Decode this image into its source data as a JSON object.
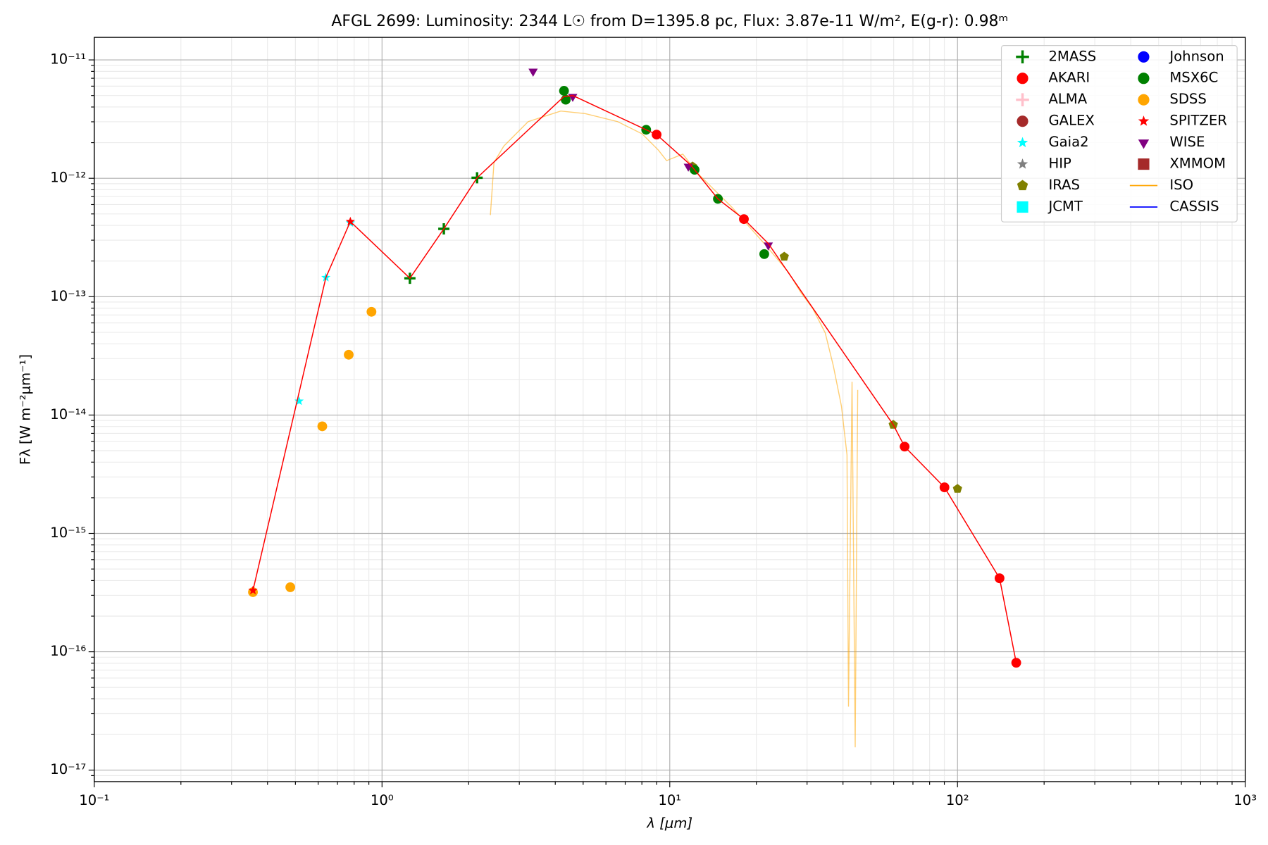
{
  "chart_data": {
    "type": "sed",
    "title": "AFGL 2699:  Luminosity: 2344 L☉ from D=1395.8 pc, Flux: 3.87e-11 W/m², E(g-r): 0.98ᵐ",
    "xlabel": "λ [μm]",
    "ylabel": "Fλ [W m⁻²μm⁻¹]",
    "xscale": "log",
    "yscale": "log",
    "xlim": [
      0.1,
      1000
    ],
    "ylim": [
      8e-18,
      1.55e-11
    ],
    "xticks": [
      {
        "value": 0.1,
        "label": "10⁻¹"
      },
      {
        "value": 1,
        "label": "10⁰"
      },
      {
        "value": 10,
        "label": "10¹"
      },
      {
        "value": 100,
        "label": "10²"
      },
      {
        "value": 1000,
        "label": "10³"
      }
    ],
    "yticks": [
      {
        "value": 1e-17,
        "label": "10⁻¹⁷"
      },
      {
        "value": 1e-16,
        "label": "10⁻¹⁶"
      },
      {
        "value": 1e-15,
        "label": "10⁻¹⁵"
      },
      {
        "value": 1e-14,
        "label": "10⁻¹⁴"
      },
      {
        "value": 1e-13,
        "label": "10⁻¹³"
      },
      {
        "value": 1e-12,
        "label": "10⁻¹²"
      },
      {
        "value": 1e-11,
        "label": "10⁻¹¹"
      }
    ],
    "xminorticks": [
      0.2,
      0.3,
      0.4,
      0.5,
      0.6,
      0.7,
      0.8,
      0.9,
      2,
      3,
      4,
      5,
      6,
      7,
      8,
      9,
      20,
      30,
      40,
      50,
      60,
      70,
      80,
      90,
      200,
      300,
      400,
      500,
      600,
      700,
      800,
      900
    ],
    "yminorticks": [
      9e-18,
      2e-17,
      3e-17,
      4e-17,
      5e-17,
      6e-17,
      7e-17,
      8e-17,
      9e-17,
      2e-16,
      3e-16,
      4e-16,
      5e-16,
      6e-16,
      7e-16,
      8e-16,
      9e-16,
      2e-15,
      3e-15,
      4e-15,
      5e-15,
      6e-15,
      7e-15,
      8e-15,
      9e-15,
      2e-14,
      3e-14,
      4e-14,
      5e-14,
      6e-14,
      7e-14,
      8e-14,
      9e-14,
      2e-13,
      3e-13,
      4e-13,
      5e-13,
      6e-13,
      7e-13,
      8e-13,
      9e-13,
      2e-12,
      3e-12,
      4e-12,
      5e-12,
      6e-12,
      7e-12,
      8e-12,
      9e-12
    ],
    "grid": true,
    "legend": "upper right",
    "sed_line": {
      "color": "#ff0000",
      "x": [
        0.356,
        0.638,
        0.776,
        1.25,
        1.64,
        2.14,
        4.29,
        4.61,
        8.28,
        9.0,
        11.8,
        12.2,
        14.7,
        18.1,
        22.0,
        59.8,
        65.5,
        90.1,
        140,
        160
      ],
      "values": [
        3.3e-16,
        1.45e-13,
        4.31e-13,
        1.43e-13,
        3.74e-13,
        1.01e-12,
        4.91e-12,
        4.99e-12,
        2.57e-12,
        2.34e-12,
        1.3e-12,
        1.18e-12,
        6.7e-13,
        4.52e-13,
        2.81e-13,
        8.28e-15,
        5.41e-15,
        2.45e-15,
        4.18e-16,
        8.08e-17
      ]
    },
    "series": [
      {
        "name": "2MASS",
        "color": "#008000",
        "marker": "plus",
        "x": [
          1.25,
          1.64,
          2.14
        ],
        "values": [
          1.43e-13,
          3.74e-13,
          1.01e-12
        ]
      },
      {
        "name": "AKARI",
        "color": "#ff0000",
        "marker": "circle",
        "x": [
          9.0,
          18.1,
          65.5,
          90.1,
          140,
          160
        ],
        "values": [
          2.34e-12,
          4.52e-13,
          5.41e-15,
          2.45e-15,
          4.18e-16,
          8.08e-17
        ]
      },
      {
        "name": "ALMA",
        "color": "#ffc0cb",
        "marker": "plus",
        "x": [],
        "values": []
      },
      {
        "name": "GALEX",
        "color": "#a52a2a",
        "marker": "circle",
        "x": [],
        "values": []
      },
      {
        "name": "Gaia2",
        "color": "#00ffff",
        "marker": "star",
        "x": [
          0.515,
          0.638,
          0.776
        ],
        "values": [
          1.31e-14,
          1.45e-13,
          4.2e-13
        ]
      },
      {
        "name": "HIP",
        "color": "#808080",
        "marker": "star",
        "x": [],
        "values": []
      },
      {
        "name": "IRAS",
        "color": "#808000",
        "marker": "pentagon",
        "x": [
          12,
          25,
          59.8,
          100
        ],
        "values": [
          1.26e-12,
          2.18e-13,
          8.28e-15,
          2.38e-15
        ]
      },
      {
        "name": "JCMT",
        "color": "#00ffff",
        "marker": "square",
        "x": [],
        "values": []
      },
      {
        "name": "Johnson",
        "color": "#0000ff",
        "marker": "circle",
        "x": [],
        "values": []
      },
      {
        "name": "MSX6C",
        "color": "#008000",
        "marker": "circle",
        "x": [
          4.29,
          4.35,
          8.28,
          12.2,
          14.7,
          21.3
        ],
        "values": [
          5.48e-12,
          4.61e-12,
          2.57e-12,
          1.18e-12,
          6.7e-13,
          2.29e-13
        ]
      },
      {
        "name": "SDSS",
        "color": "#ffa500",
        "marker": "circle",
        "x": [
          0.356,
          0.48,
          0.62,
          0.766,
          0.919
        ],
        "values": [
          3.19e-16,
          3.51e-16,
          8.03e-15,
          3.23e-14,
          7.45e-14
        ]
      },
      {
        "name": "SPITZER",
        "color": "#ff0000",
        "marker": "star",
        "x": [
          0.356,
          0.776
        ],
        "values": [
          3.3e-16,
          4.31e-13
        ]
      },
      {
        "name": "WISE",
        "color": "#800080",
        "marker": "triangle",
        "x": [
          3.35,
          4.6,
          11.6,
          22.0
        ],
        "values": [
          8e-12,
          4.9e-12,
          1.26e-12,
          2.72e-13
        ]
      },
      {
        "name": "XMMOM",
        "color": "#a52a2a",
        "marker": "square",
        "x": [],
        "values": []
      },
      {
        "name": "ISO",
        "color": "#ffa500",
        "marker": "line",
        "x": [
          2.38,
          2.45,
          2.65,
          3.22,
          4.18,
          5.08,
          6.59,
          8.02,
          9.13,
          9.75,
          11.1,
          12.6,
          16.4,
          21.3,
          25.8,
          28.5,
          31.4,
          34.7,
          37.0,
          39.5,
          41.3,
          41.8,
          43.0,
          44.1,
          45.0
        ],
        "values": [
          4.89e-13,
          1.36e-12,
          1.87e-12,
          3.01e-12,
          3.7e-12,
          3.52e-12,
          3.01e-12,
          2.37e-12,
          1.73e-12,
          1.41e-12,
          1.6e-12,
          1.08e-12,
          5.73e-13,
          2.81e-13,
          1.62e-13,
          1.09e-13,
          7.94e-14,
          4.94e-14,
          2.62e-14,
          1.19e-14,
          4.61e-15,
          3.44e-17,
          1.91e-14,
          1.56e-17,
          1.63e-14
        ]
      },
      {
        "name": "CASSIS",
        "color": "#0000ff",
        "marker": "line",
        "x": [],
        "values": []
      }
    ]
  }
}
